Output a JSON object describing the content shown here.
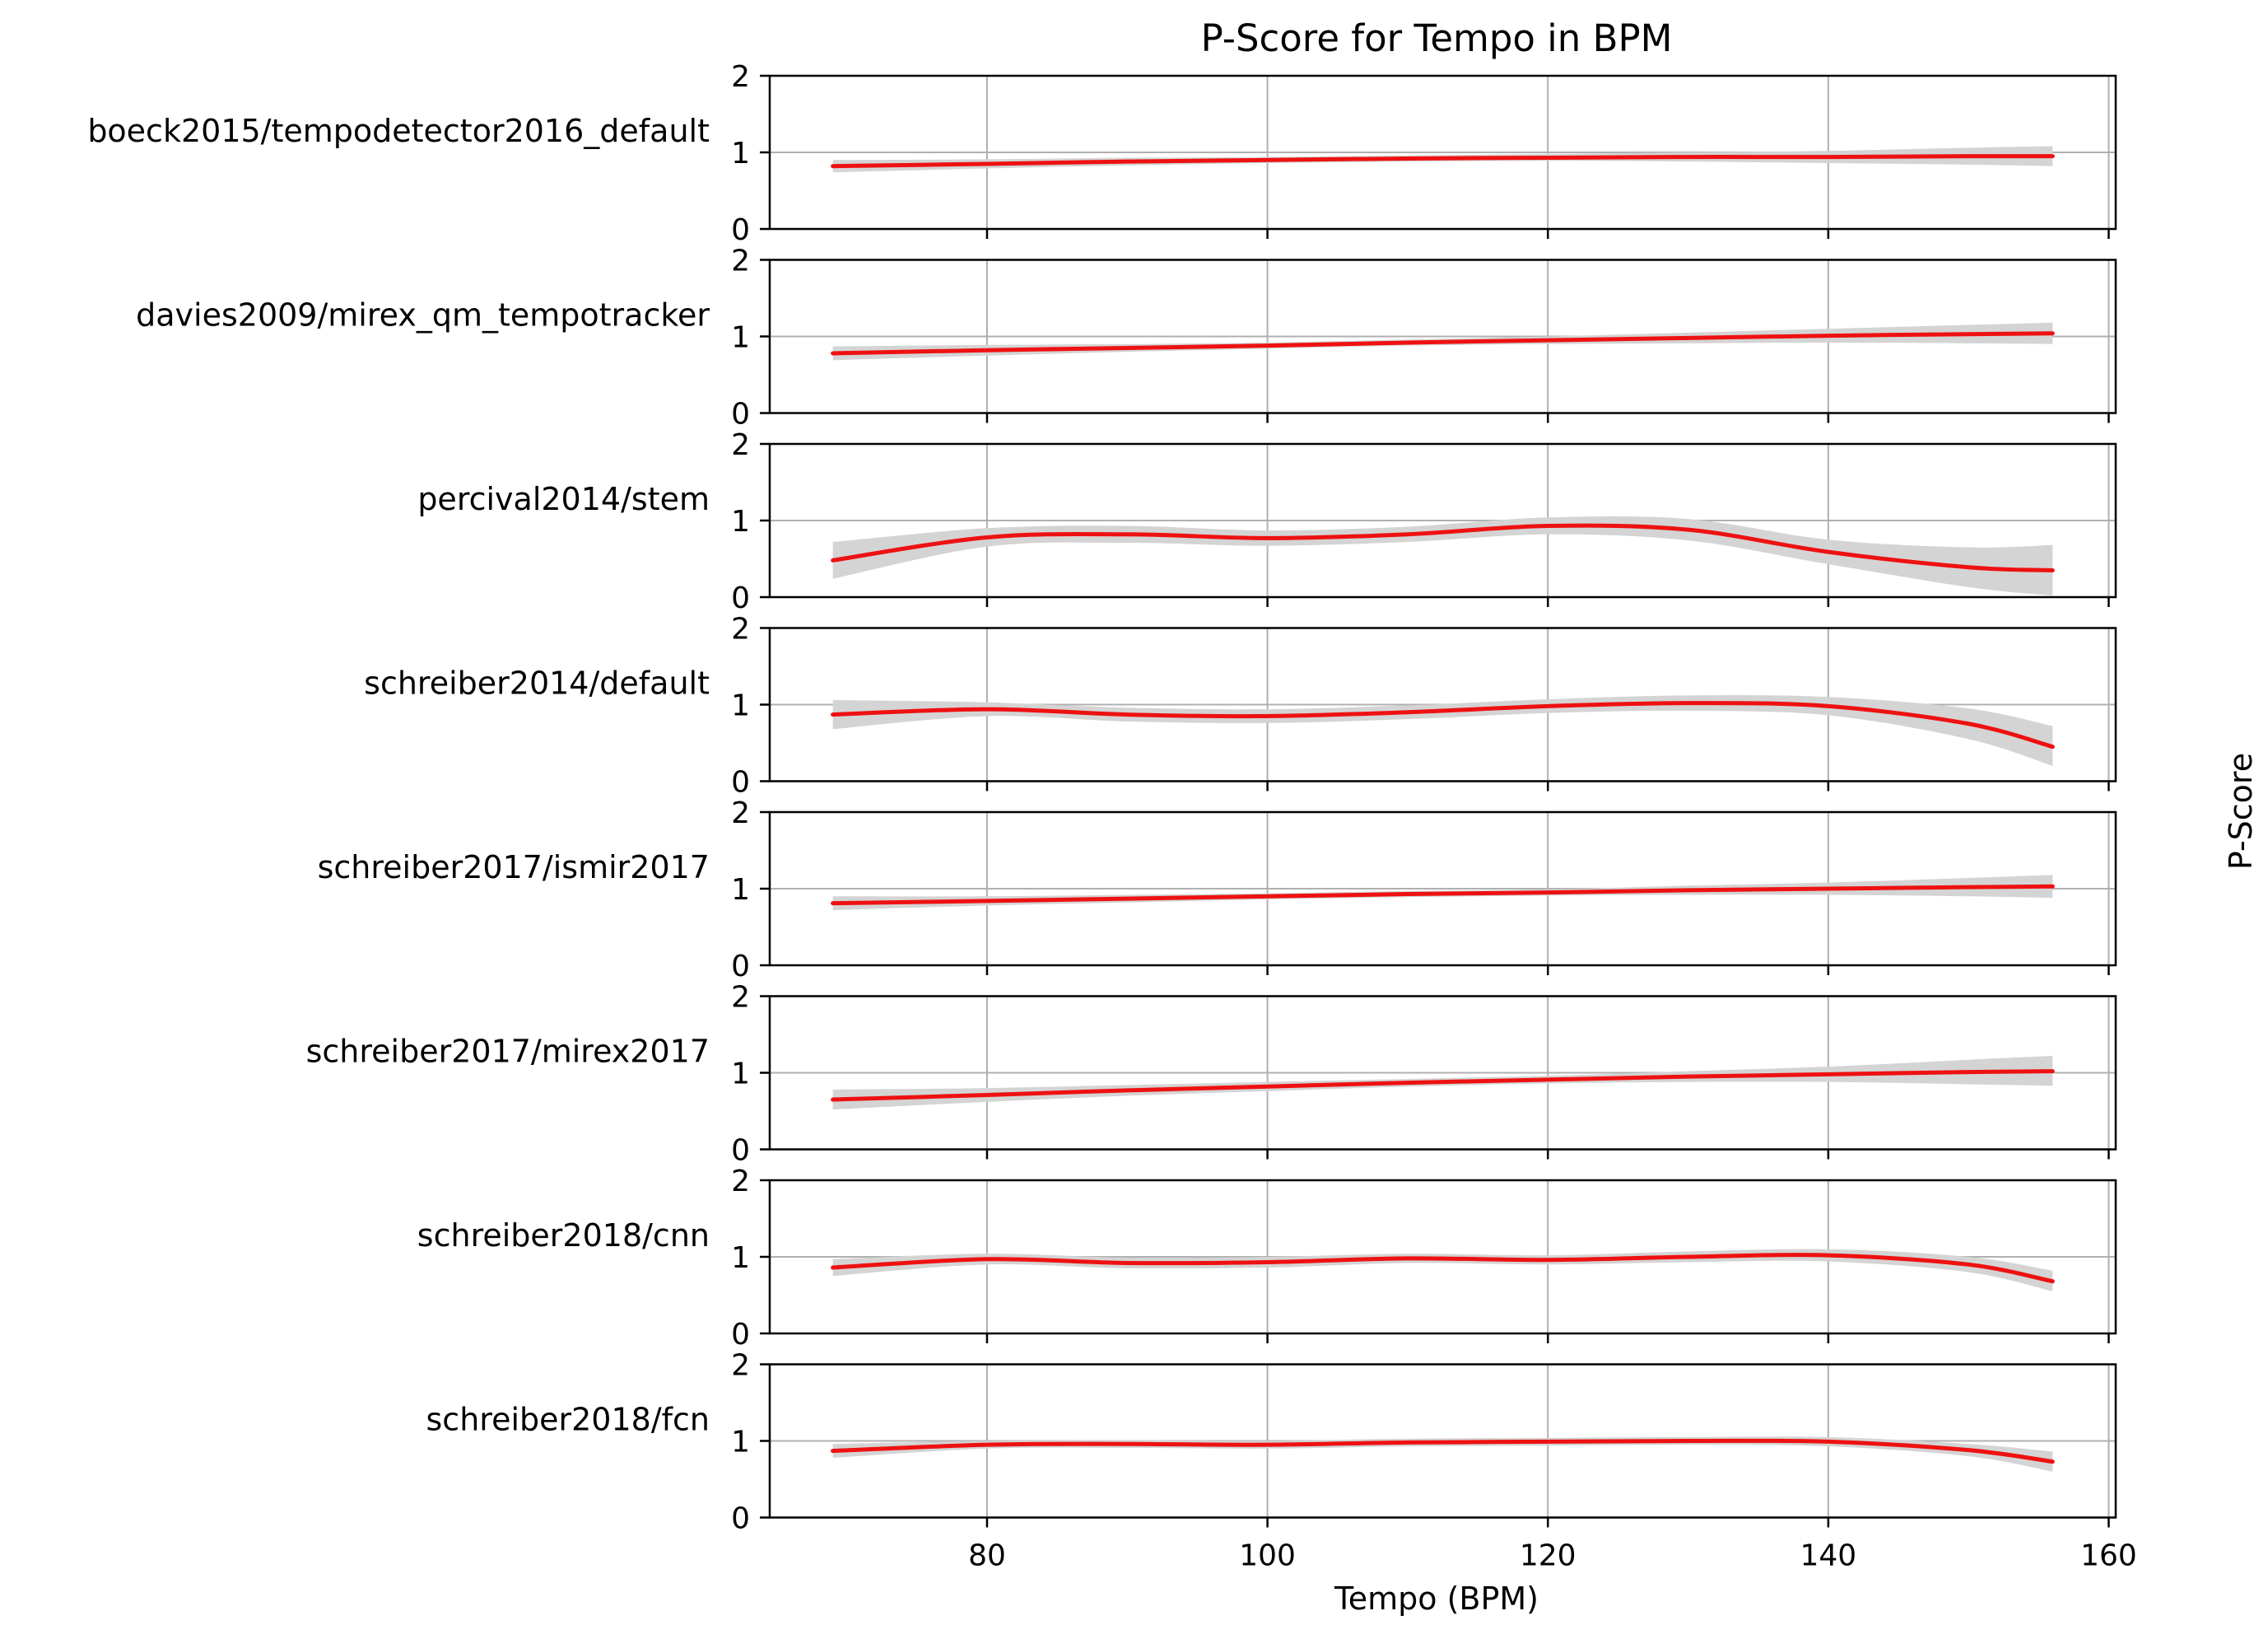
{
  "figure": {
    "title": "P-Score for Tempo in BPM",
    "xlabel": "Tempo (BPM)",
    "ylabel": "P-Score"
  },
  "colors": {
    "line": "#ee1111",
    "band": "#d4d4d4",
    "grid": "#b0b0b0",
    "axis": "#000000"
  },
  "chart_data": {
    "type": "line",
    "xlim": [
      64.5,
      160.5
    ],
    "ylim": [
      0,
      2
    ],
    "xticks": [
      80,
      100,
      120,
      140,
      160
    ],
    "yticks": [
      0,
      1,
      2
    ],
    "grid": true,
    "legend": "none",
    "x": [
      69,
      80,
      90,
      100,
      110,
      120,
      130,
      140,
      150,
      156
    ],
    "panels": [
      {
        "name": "boeck2015/tempodetector2016_default",
        "values": [
          0.82,
          0.85,
          0.88,
          0.9,
          0.92,
          0.93,
          0.94,
          0.94,
          0.95,
          0.95
        ],
        "lower": [
          0.74,
          0.79,
          0.83,
          0.86,
          0.88,
          0.89,
          0.88,
          0.86,
          0.84,
          0.82
        ],
        "upper": [
          0.9,
          0.91,
          0.93,
          0.94,
          0.96,
          0.98,
          1.0,
          1.02,
          1.06,
          1.08
        ]
      },
      {
        "name": "davies2009/mirex_qm_tempotracker",
        "values": [
          0.78,
          0.82,
          0.85,
          0.88,
          0.92,
          0.95,
          0.98,
          1.01,
          1.03,
          1.04
        ],
        "lower": [
          0.69,
          0.75,
          0.8,
          0.84,
          0.88,
          0.9,
          0.91,
          0.92,
          0.91,
          0.9
        ],
        "upper": [
          0.87,
          0.89,
          0.9,
          0.92,
          0.96,
          1.0,
          1.05,
          1.1,
          1.15,
          1.18
        ]
      },
      {
        "name": "percival2014/stem",
        "values": [
          0.48,
          0.78,
          0.82,
          0.77,
          0.82,
          0.93,
          0.88,
          0.59,
          0.39,
          0.35
        ],
        "lower": [
          0.24,
          0.66,
          0.71,
          0.67,
          0.72,
          0.82,
          0.74,
          0.43,
          0.13,
          0.02
        ],
        "upper": [
          0.72,
          0.9,
          0.93,
          0.87,
          0.92,
          1.04,
          1.02,
          0.75,
          0.65,
          0.68
        ]
      },
      {
        "name": "schreiber2014/default",
        "values": [
          0.87,
          0.94,
          0.87,
          0.85,
          0.9,
          0.98,
          1.02,
          0.98,
          0.75,
          0.45
        ],
        "lower": [
          0.68,
          0.85,
          0.78,
          0.76,
          0.81,
          0.89,
          0.92,
          0.86,
          0.55,
          0.2
        ],
        "upper": [
          1.06,
          1.03,
          0.96,
          0.94,
          0.99,
          1.07,
          1.12,
          1.1,
          0.95,
          0.72
        ]
      },
      {
        "name": "schreiber2017/ismir2017",
        "values": [
          0.81,
          0.84,
          0.87,
          0.9,
          0.93,
          0.95,
          0.98,
          1.0,
          1.02,
          1.03
        ],
        "lower": [
          0.72,
          0.78,
          0.82,
          0.86,
          0.89,
          0.91,
          0.92,
          0.92,
          0.9,
          0.88
        ],
        "upper": [
          0.9,
          0.9,
          0.92,
          0.94,
          0.97,
          0.99,
          1.04,
          1.08,
          1.14,
          1.18
        ]
      },
      {
        "name": "schreiber2017/mirex2017",
        "values": [
          0.65,
          0.71,
          0.77,
          0.82,
          0.87,
          0.91,
          0.95,
          0.98,
          1.01,
          1.02
        ],
        "lower": [
          0.52,
          0.62,
          0.7,
          0.76,
          0.82,
          0.86,
          0.88,
          0.88,
          0.85,
          0.83
        ],
        "upper": [
          0.78,
          0.8,
          0.84,
          0.88,
          0.92,
          0.96,
          1.02,
          1.08,
          1.17,
          1.22
        ]
      },
      {
        "name": "schreiber2018/cnn",
        "values": [
          0.86,
          0.97,
          0.92,
          0.93,
          0.98,
          0.96,
          1.0,
          1.02,
          0.9,
          0.68
        ],
        "lower": [
          0.75,
          0.9,
          0.85,
          0.86,
          0.92,
          0.9,
          0.93,
          0.94,
          0.8,
          0.55
        ],
        "upper": [
          0.97,
          1.04,
          0.99,
          1.0,
          1.04,
          1.02,
          1.07,
          1.1,
          1.0,
          0.82
        ]
      },
      {
        "name": "schreiber2018/fcn",
        "values": [
          0.87,
          0.95,
          0.96,
          0.95,
          0.98,
          0.99,
          1.0,
          0.99,
          0.88,
          0.73
        ],
        "lower": [
          0.78,
          0.9,
          0.91,
          0.9,
          0.93,
          0.94,
          0.95,
          0.93,
          0.8,
          0.6
        ],
        "upper": [
          0.96,
          1.0,
          1.01,
          1.0,
          1.03,
          1.04,
          1.05,
          1.05,
          0.96,
          0.86
        ]
      }
    ]
  }
}
